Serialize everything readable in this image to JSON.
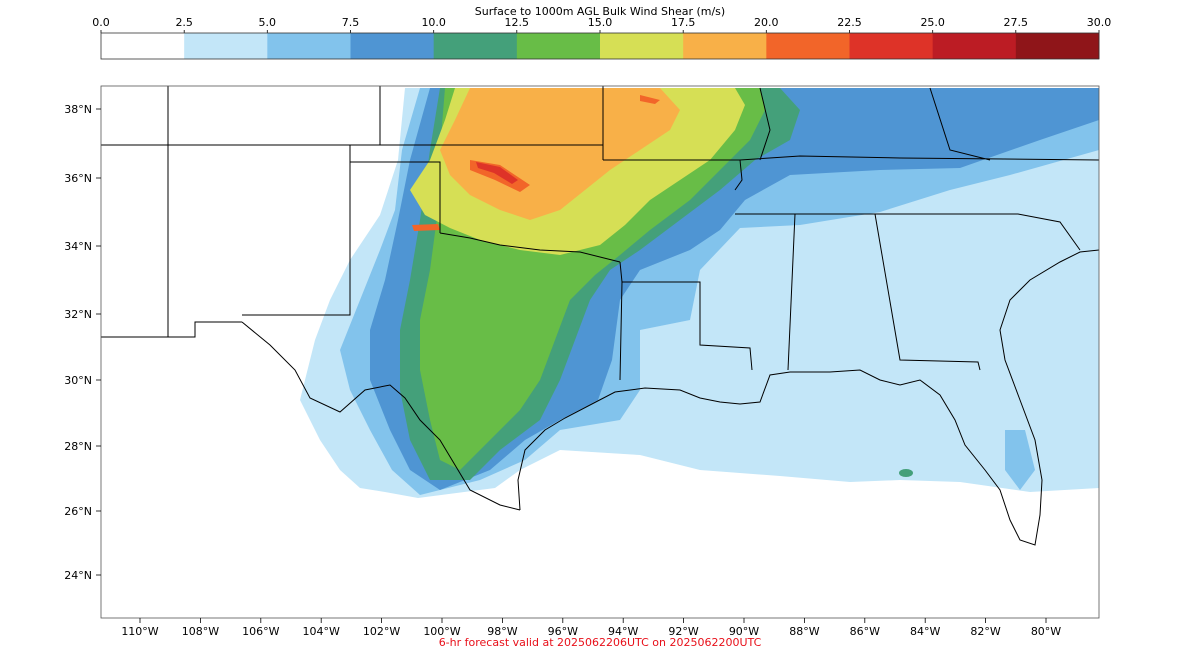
{
  "colorbar": {
    "title": "Surface to 1000m AGL Bulk Wind Shear (m/s)",
    "ticks": [
      "0.0",
      "2.5",
      "5.0",
      "7.5",
      "10.0",
      "12.5",
      "15.0",
      "17.5",
      "20.0",
      "22.5",
      "25.0",
      "27.5",
      "30.0"
    ],
    "colors": [
      "#ffffff",
      "#c3e6f8",
      "#82c3ec",
      "#4f95d3",
      "#44a07a",
      "#68bd47",
      "#d6df55",
      "#f8b048",
      "#f26529",
      "#de3328",
      "#bc1c24",
      "#8f1519"
    ]
  },
  "map": {
    "lat_labels": [
      "38°N",
      "36°N",
      "34°N",
      "32°N",
      "30°N",
      "28°N",
      "26°N",
      "24°N"
    ],
    "lon_labels": [
      "110°W",
      "108°W",
      "106°W",
      "104°W",
      "102°W",
      "100°W",
      "98°W",
      "96°W",
      "94°W",
      "92°W",
      "90°W",
      "88°W",
      "86°W",
      "84°W",
      "82°W",
      "80°W"
    ]
  },
  "footer": {
    "text": "6-hr forecast valid at 2025062206UTC on 2025062200UTC",
    "color": "#e8101a"
  }
}
